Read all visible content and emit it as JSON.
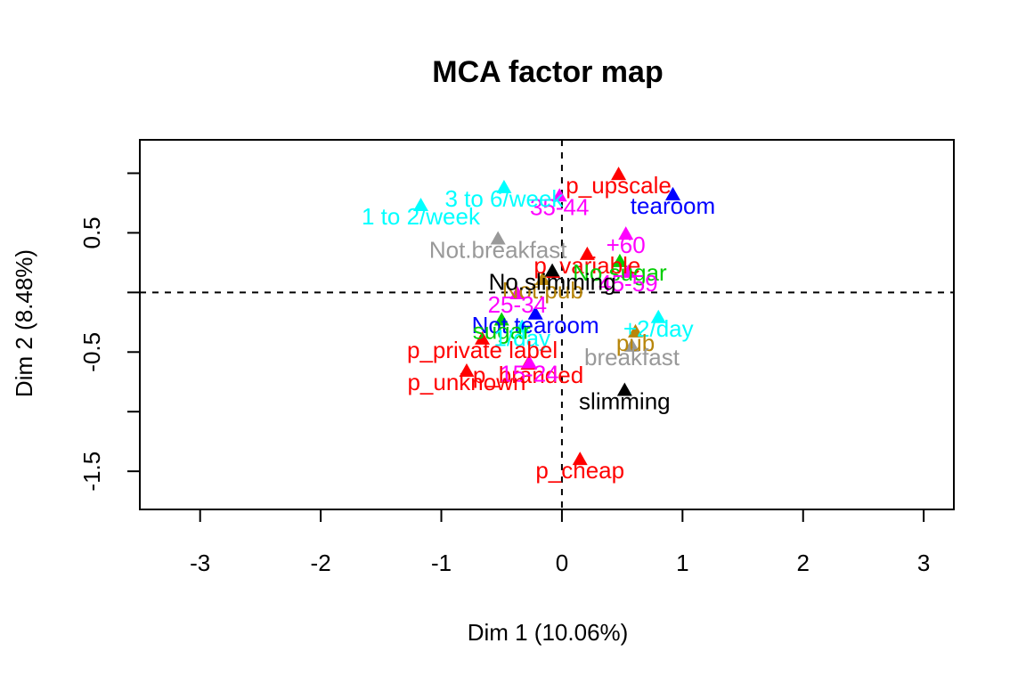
{
  "chart_data": {
    "type": "scatter",
    "title": "MCA factor map",
    "xlabel": "Dim 1 (10.06%)",
    "ylabel": "Dim 2 (8.48%)",
    "xlim": [
      -3.5,
      3.25
    ],
    "ylim": [
      -1.82,
      1.28
    ],
    "xticks": [
      -3,
      -2,
      -1,
      0,
      1,
      2,
      3
    ],
    "xtick_labels": [
      "-3",
      "-2",
      "-1",
      "0",
      "1",
      "2",
      "3"
    ],
    "yticks": [
      -1.5,
      -1.0,
      -0.5,
      0.0,
      0.5,
      1.0
    ],
    "ytick_labels": [
      "-1.5",
      "",
      "-0.5",
      "",
      "0.5",
      ""
    ],
    "reference_lines": [
      0,
      0
    ],
    "grid": false,
    "legend": "none",
    "colors": {
      "red": "#ff0000",
      "cyan": "#00ffff",
      "gray": "#999999",
      "black": "#000000",
      "magenta": "#ff00ff",
      "blue": "#0000ff",
      "green": "#00cd00",
      "gold": "#b8860b"
    },
    "points": [
      {
        "label": "p_upscale",
        "x": 0.47,
        "y": 0.98,
        "color": "#ff0000"
      },
      {
        "label": "35-44",
        "x": -0.02,
        "y": 0.8,
        "color": "#ff00ff"
      },
      {
        "label": "1 to 2/week",
        "x": -1.17,
        "y": 0.72,
        "color": "#00ffff"
      },
      {
        "label": "3 to 6/week",
        "x": -0.48,
        "y": 0.87,
        "color": "#00ffff"
      },
      {
        "label": "tearoom",
        "x": 0.92,
        "y": 0.81,
        "color": "#0000ff"
      },
      {
        "label": "Not.breakfast",
        "x": -0.53,
        "y": 0.44,
        "color": "#999999"
      },
      {
        "label": "+60",
        "x": 0.53,
        "y": 0.48,
        "color": "#ff00ff"
      },
      {
        "label": "p_variable",
        "x": 0.21,
        "y": 0.31,
        "color": "#ff0000"
      },
      {
        "label": "No.sugar",
        "x": 0.48,
        "y": 0.25,
        "color": "#00cd00"
      },
      {
        "label": "Not.pub",
        "x": -0.16,
        "y": 0.1,
        "color": "#b8860b"
      },
      {
        "label": "45-59",
        "x": 0.55,
        "y": 0.16,
        "color": "#ff00ff"
      },
      {
        "label": "No.slimming",
        "x": -0.08,
        "y": 0.17,
        "color": "#000000"
      },
      {
        "label": "25-34",
        "x": -0.37,
        "y": -0.02,
        "color": "#ff00ff"
      },
      {
        "label": "Not.tearoom",
        "x": -0.22,
        "y": -0.19,
        "color": "#0000ff"
      },
      {
        "label": "sugar",
        "x": -0.5,
        "y": -0.24,
        "color": "#00cd00"
      },
      {
        "label": "+2/day",
        "x": 0.8,
        "y": -0.22,
        "color": "#00ffff"
      },
      {
        "label": "1/day",
        "x": -0.33,
        "y": -0.3,
        "color": "#00ffff"
      },
      {
        "label": "pub",
        "x": 0.61,
        "y": -0.34,
        "color": "#b8860b"
      },
      {
        "label": "p_private label",
        "x": -0.66,
        "y": -0.4,
        "color": "#ff0000"
      },
      {
        "label": "breakfast",
        "x": 0.58,
        "y": -0.46,
        "color": "#999999"
      },
      {
        "label": "p_branded",
        "x": -0.28,
        "y": -0.61,
        "color": "#ff0000"
      },
      {
        "label": "15-24",
        "x": -0.27,
        "y": -0.6,
        "color": "#ff00ff"
      },
      {
        "label": "p_unknown",
        "x": -0.79,
        "y": -0.67,
        "color": "#ff0000"
      },
      {
        "label": "slimming",
        "x": 0.52,
        "y": -0.83,
        "color": "#000000"
      },
      {
        "label": "p_cheap",
        "x": 0.15,
        "y": -1.41,
        "color": "#ff0000"
      }
    ]
  }
}
